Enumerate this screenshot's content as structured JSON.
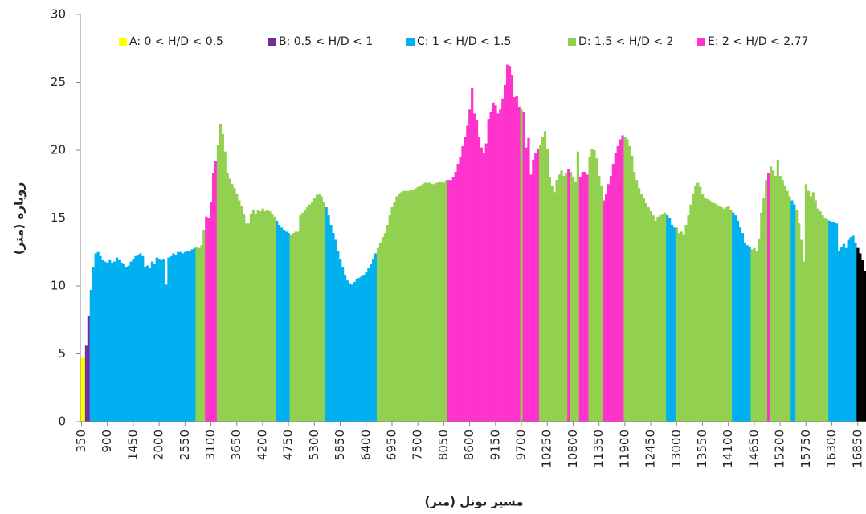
{
  "chart_data": {
    "type": "bar",
    "xlabel": "مسیر تونل (متر)",
    "ylabel": "روباره (متر)",
    "ylim": [
      0,
      30
    ],
    "yticks": [
      0,
      5,
      10,
      15,
      20,
      25,
      30
    ],
    "grid": false,
    "legend_position": "top",
    "legend": [
      {
        "name": "A: 0 < H/D < 0.5",
        "color": "#ffff00"
      },
      {
        "name": "B: 0.5 < H/D < 1",
        "color": "#7030a0"
      },
      {
        "name": "C: 1 < H/D < 1.5",
        "color": "#00b0f0"
      },
      {
        "name": "D: 1.5 < H/D < 2",
        "color": "#92d050"
      },
      {
        "name": "E: 2 < H/D < 2.77",
        "color": "#ff33cc"
      }
    ],
    "categories": [
      350,
      null,
      null,
      null,
      null,
      null,
      null,
      null,
      null,
      null,
      null,
      900,
      null,
      null,
      null,
      null,
      null,
      null,
      null,
      null,
      null,
      null,
      1450,
      null,
      null,
      null,
      null,
      null,
      null,
      null,
      null,
      null,
      null,
      2000,
      null,
      null,
      null,
      null,
      null,
      null,
      null,
      null,
      null,
      null,
      2550,
      null,
      null,
      null,
      null,
      null,
      null,
      null,
      null,
      null,
      null,
      3100,
      null,
      null,
      null,
      null,
      null,
      null,
      null,
      null,
      null,
      null,
      3650,
      null,
      null,
      null,
      null,
      null,
      null,
      null,
      null,
      null,
      null,
      4200,
      null,
      null,
      null,
      null,
      null,
      null,
      null,
      null,
      null,
      null,
      4750,
      null,
      null,
      null,
      null,
      null,
      null,
      null,
      null,
      null,
      null,
      5300,
      null,
      null,
      null,
      null,
      null,
      null,
      null,
      null,
      null,
      null,
      5850,
      null,
      null,
      null,
      null,
      null,
      null,
      null,
      null,
      null,
      null,
      6400,
      null,
      null,
      null,
      null,
      null,
      null,
      null,
      null,
      null,
      null,
      6950,
      null,
      null,
      null,
      null,
      null,
      null,
      null,
      null,
      null,
      null,
      7500,
      null,
      null,
      null,
      null,
      null,
      null,
      null,
      null,
      null,
      null,
      8050,
      null,
      null,
      null,
      null,
      null,
      null,
      null,
      null,
      null,
      null,
      8600,
      null,
      null,
      null,
      null,
      null,
      null,
      null,
      null,
      null,
      null,
      9150,
      null,
      null,
      null,
      null,
      null,
      null,
      null,
      null,
      null,
      null,
      9700,
      null,
      null,
      null,
      null,
      null,
      null,
      null,
      null,
      null,
      null,
      10250,
      null,
      null,
      null,
      null,
      null,
      null,
      null,
      null,
      null,
      null,
      10800,
      null,
      null,
      null,
      null,
      null,
      null,
      null,
      null,
      null,
      null,
      11350,
      null,
      null,
      null,
      null,
      null,
      null,
      null,
      null,
      null,
      null,
      11900,
      null,
      null,
      null,
      null,
      null,
      null,
      null,
      null,
      null,
      null,
      12450,
      null,
      null,
      null,
      null,
      null,
      null,
      null,
      null,
      null,
      null,
      13000,
      null,
      null,
      null,
      null,
      null,
      null,
      null,
      null,
      null,
      null,
      13550,
      null,
      null,
      null,
      null,
      null,
      null,
      null,
      null,
      null,
      null,
      14100,
      null,
      null,
      null,
      null,
      null,
      null,
      null,
      null,
      null,
      null,
      14650,
      null,
      null,
      null,
      null,
      null,
      null,
      null,
      null,
      null,
      null,
      15200,
      null,
      null,
      null,
      null,
      null,
      null,
      null,
      null,
      null,
      null,
      15750,
      null,
      null,
      null,
      null,
      null,
      null,
      null,
      null,
      null,
      null,
      16300,
      null,
      null,
      null,
      null,
      null,
      null,
      null,
      null,
      null,
      null,
      16850,
      null,
      null,
      null
    ],
    "values": [
      4.7,
      4.7,
      5.6,
      7.8,
      9.7,
      11.4,
      12.4,
      12.5,
      12.2,
      11.9,
      11.8,
      11.7,
      11.9,
      11.7,
      11.8,
      12.1,
      11.9,
      11.7,
      11.6,
      11.4,
      11.5,
      11.8,
      12,
      12.2,
      12.3,
      12.4,
      12.2,
      11.4,
      11.5,
      11.3,
      11.8,
      11.6,
      12.1,
      12,
      11.9,
      12,
      10.1,
      12.1,
      12.2,
      12.4,
      12.3,
      12.5,
      12.5,
      12.4,
      12.5,
      12.6,
      12.6,
      12.7,
      12.8,
      12.9,
      12.8,
      13,
      14.1,
      15.1,
      15,
      16.2,
      18.3,
      19.2,
      20.4,
      21.9,
      21.2,
      19.9,
      18.3,
      17.9,
      17.5,
      17.2,
      16.8,
      16.3,
      15.9,
      15.3,
      14.6,
      14.6,
      15.3,
      15.6,
      15.3,
      15.6,
      15.5,
      15.7,
      15.5,
      15.6,
      15.5,
      15.3,
      15.1,
      14.8,
      14.5,
      14.3,
      14.1,
      14,
      13.9,
      13.8,
      13.9,
      14,
      14,
      15.2,
      15.4,
      15.6,
      15.8,
      16,
      16.2,
      16.5,
      16.7,
      16.8,
      16.6,
      16.2,
      15.8,
      15.2,
      14.5,
      13.9,
      13.4,
      12.6,
      12,
      11.4,
      10.8,
      10.4,
      10.2,
      10.1,
      10.3,
      10.5,
      10.6,
      10.7,
      10.8,
      11,
      11.3,
      11.6,
      12,
      12.4,
      12.8,
      13.2,
      13.6,
      13.9,
      14.5,
      15.2,
      15.8,
      16.2,
      16.6,
      16.8,
      16.9,
      17,
      17,
      17,
      17.1,
      17.1,
      17.2,
      17.3,
      17.4,
      17.5,
      17.6,
      17.6,
      17.6,
      17.5,
      17.5,
      17.6,
      17.7,
      17.7,
      17.6,
      17.8,
      17.8,
      17.8,
      18,
      18.4,
      19,
      19.5,
      20.3,
      21,
      21.8,
      23,
      24.6,
      22.7,
      22.2,
      21,
      20.2,
      19.8,
      20.5,
      22.3,
      22.8,
      23.5,
      23.3,
      22.7,
      23,
      23.8,
      24.8,
      26.3,
      26.2,
      25.5,
      23.9,
      24,
      23.2,
      23,
      22.8,
      20.2,
      20.9,
      18.2,
      19.3,
      19.8,
      20.1,
      20.4,
      21,
      21.4,
      20.1,
      18,
      17.4,
      16.9,
      17.8,
      18.2,
      18.5,
      18.1,
      18.3,
      18.6,
      18.4,
      18,
      17.7,
      19.9,
      18,
      18.4,
      18.4,
      18.2,
      19.5,
      20.1,
      20,
      19.4,
      18.1,
      17.4,
      16.3,
      16.8,
      17.5,
      18.1,
      19,
      19.8,
      20.3,
      20.8,
      21.1,
      21,
      20.8,
      20.3,
      19.6,
      18.4,
      17.8,
      17.2,
      16.8,
      16.5,
      16.1,
      15.8,
      15.5,
      15.2,
      14.8,
      15.1,
      15.2,
      15.3,
      15.4,
      15.2,
      15,
      14.5,
      14.3,
      14.3,
      13.9,
      14,
      13.8,
      14.5,
      15.2,
      16,
      16.8,
      17.4,
      17.6,
      17.3,
      16.8,
      16.5,
      16.4,
      16.3,
      16.2,
      16.1,
      16,
      15.9,
      15.8,
      15.7,
      15.8,
      15.9,
      15.6,
      15.4,
      15.2,
      14.8,
      14.3,
      13.9,
      13.2,
      13,
      12.9,
      12.7,
      12.8,
      12.6,
      13.5,
      15.4,
      16.5,
      17.8,
      18.3,
      18.8,
      18.5,
      18.1,
      19.3,
      18.1,
      17.8,
      17.4,
      17,
      16.6,
      16.3,
      16,
      15.6,
      14.6,
      13.4,
      11.8,
      17.5,
      17,
      16.6,
      16.9,
      16.3,
      15.7,
      15.5,
      15.2,
      15,
      14.9,
      14.8,
      14.7,
      14.7,
      14.6,
      12.6,
      12.9,
      13.1,
      12.8,
      13.4,
      13.6,
      13.7,
      13.2,
      12.8,
      12.4,
      11.9,
      11.1
    ],
    "colors": [
      "#ffff00",
      "#ffff00",
      "#7030a0",
      "#7030a0",
      "#00b0f0",
      "#00b0f0",
      "#00b0f0",
      "#00b0f0",
      "#00b0f0",
      "#00b0f0",
      "#00b0f0",
      "#00b0f0",
      "#00b0f0",
      "#00b0f0",
      "#00b0f0",
      "#00b0f0",
      "#00b0f0",
      "#00b0f0",
      "#00b0f0",
      "#00b0f0",
      "#00b0f0",
      "#00b0f0",
      "#00b0f0",
      "#00b0f0",
      "#00b0f0",
      "#00b0f0",
      "#00b0f0",
      "#00b0f0",
      "#00b0f0",
      "#00b0f0",
      "#00b0f0",
      "#00b0f0",
      "#00b0f0",
      "#00b0f0",
      "#00b0f0",
      "#00b0f0",
      "#00b0f0",
      "#00b0f0",
      "#00b0f0",
      "#00b0f0",
      "#00b0f0",
      "#00b0f0",
      "#00b0f0",
      "#00b0f0",
      "#00b0f0",
      "#00b0f0",
      "#00b0f0",
      "#00b0f0",
      "#00b0f0",
      "#92d050",
      "#92d050",
      "#92d050",
      "#92d050",
      "#ff33cc",
      "#ff33cc",
      "#ff33cc",
      "#ff33cc",
      "#ff33cc",
      "#92d050",
      "#92d050",
      "#92d050",
      "#92d050",
      "#92d050",
      "#92d050",
      "#92d050",
      "#92d050",
      "#92d050",
      "#92d050",
      "#92d050",
      "#92d050",
      "#92d050",
      "#92d050",
      "#92d050",
      "#92d050",
      "#92d050",
      "#92d050",
      "#92d050",
      "#92d050",
      "#92d050",
      "#92d050",
      "#92d050",
      "#92d050",
      "#92d050",
      "#00b0f0",
      "#00b0f0",
      "#00b0f0",
      "#00b0f0",
      "#00b0f0",
      "#00b0f0",
      "#92d050",
      "#92d050",
      "#92d050",
      "#92d050",
      "#92d050",
      "#92d050",
      "#92d050",
      "#92d050",
      "#92d050",
      "#92d050",
      "#92d050",
      "#92d050",
      "#92d050",
      "#92d050",
      "#92d050",
      "#00b0f0",
      "#00b0f0",
      "#00b0f0",
      "#00b0f0",
      "#00b0f0",
      "#00b0f0",
      "#00b0f0",
      "#00b0f0",
      "#00b0f0",
      "#00b0f0",
      "#00b0f0",
      "#00b0f0",
      "#00b0f0",
      "#00b0f0",
      "#00b0f0",
      "#00b0f0",
      "#00b0f0",
      "#00b0f0",
      "#00b0f0",
      "#00b0f0",
      "#00b0f0",
      "#00b0f0",
      "#92d050",
      "#92d050",
      "#92d050",
      "#92d050",
      "#92d050",
      "#92d050",
      "#92d050",
      "#92d050",
      "#92d050",
      "#92d050",
      "#92d050",
      "#92d050",
      "#92d050",
      "#92d050",
      "#92d050",
      "#92d050",
      "#92d050",
      "#92d050",
      "#92d050",
      "#92d050",
      "#92d050",
      "#92d050",
      "#92d050",
      "#92d050",
      "#92d050",
      "#92d050",
      "#92d050",
      "#92d050",
      "#92d050",
      "#92d050",
      "#ff33cc",
      "#ff33cc",
      "#ff33cc",
      "#ff33cc",
      "#ff33cc",
      "#ff33cc",
      "#ff33cc",
      "#ff33cc",
      "#ff33cc",
      "#ff33cc",
      "#ff33cc",
      "#ff33cc",
      "#ff33cc",
      "#ff33cc",
      "#ff33cc",
      "#ff33cc",
      "#ff33cc",
      "#ff33cc",
      "#ff33cc",
      "#ff33cc",
      "#ff33cc",
      "#ff33cc",
      "#ff33cc",
      "#ff33cc",
      "#ff33cc",
      "#ff33cc",
      "#ff33cc",
      "#ff33cc",
      "#ff33cc",
      "#ff33cc",
      "#ff33cc",
      "#92d050",
      "#ff33cc",
      "#ff33cc",
      "#ff33cc",
      "#ff33cc",
      "#ff33cc",
      "#ff33cc",
      "#ff33cc",
      "#92d050",
      "#92d050",
      "#92d050",
      "#92d050",
      "#92d050",
      "#92d050",
      "#92d050",
      "#92d050",
      "#92d050",
      "#92d050",
      "#92d050",
      "#92d050",
      "#ff33cc",
      "#92d050",
      "#92d050",
      "#92d050",
      "#92d050",
      "#ff33cc",
      "#ff33cc",
      "#ff33cc",
      "#ff33cc",
      "#92d050",
      "#92d050",
      "#92d050",
      "#92d050",
      "#92d050",
      "#92d050",
      "#ff33cc",
      "#ff33cc",
      "#ff33cc",
      "#ff33cc",
      "#ff33cc",
      "#ff33cc",
      "#ff33cc",
      "#ff33cc",
      "#ff33cc",
      "#92d050",
      "#92d050",
      "#92d050",
      "#92d050",
      "#92d050",
      "#92d050",
      "#92d050",
      "#92d050",
      "#92d050",
      "#92d050",
      "#92d050",
      "#92d050",
      "#92d050",
      "#92d050",
      "#92d050",
      "#92d050",
      "#92d050",
      "#92d050",
      "#00b0f0",
      "#00b0f0",
      "#00b0f0",
      "#00b0f0",
      "#92d050",
      "#92d050",
      "#92d050",
      "#92d050",
      "#92d050",
      "#92d050",
      "#92d050",
      "#92d050",
      "#92d050",
      "#92d050",
      "#92d050",
      "#92d050",
      "#92d050",
      "#92d050",
      "#92d050",
      "#92d050",
      "#92d050",
      "#92d050",
      "#92d050",
      "#92d050",
      "#92d050",
      "#92d050",
      "#92d050",
      "#92d050",
      "#00b0f0",
      "#00b0f0",
      "#00b0f0",
      "#00b0f0",
      "#00b0f0",
      "#00b0f0",
      "#00b0f0",
      "#00b0f0",
      "#92d050",
      "#92d050",
      "#92d050",
      "#92d050",
      "#92d050",
      "#92d050",
      "#92d050",
      "#ff33cc",
      "#92d050",
      "#92d050",
      "#92d050",
      "#92d050",
      "#92d050",
      "#92d050",
      "#92d050",
      "#92d050",
      "#92d050",
      "#00b0f0",
      "#00b0f0",
      "#92d050",
      "#92d050",
      "#92d050",
      "#92d050",
      "#92d050",
      "#92d050",
      "#92d050",
      "#92d050",
      "#92d050",
      "#92d050",
      "#92d050",
      "#92d050",
      "#92d050",
      "#92d050",
      "#00b0f0",
      "#00b0f0",
      "#00b0f0",
      "#00b0f0",
      "#00b0f0",
      "#00b0f0",
      "#00b0f0",
      "#00b0f0",
      "#00b0f0",
      "#00b0f0",
      "#00b0f0",
      "#00b0f0"
    ]
  }
}
